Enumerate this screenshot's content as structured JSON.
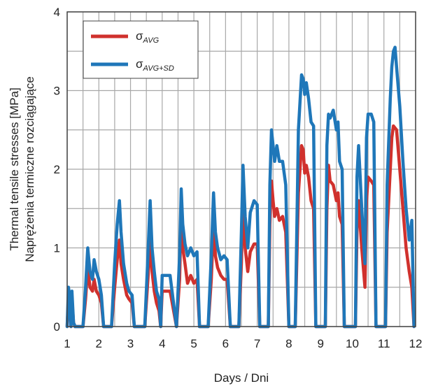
{
  "chart_data": {
    "type": "line",
    "title": "",
    "xlabel": "Days / Dni",
    "ylabel_lines": [
      "Thermal tensile stresses [MPa]",
      "Naprężenia termiczne rozciągające"
    ],
    "xlim": [
      1,
      12
    ],
    "ylim": [
      0,
      4
    ],
    "xticks": [
      1,
      2,
      3,
      4,
      5,
      6,
      7,
      8,
      9,
      10,
      11,
      12
    ],
    "yticks": [
      0,
      1,
      2,
      3,
      4
    ],
    "grid": true,
    "grid_step_x": 0.5,
    "grid_step_y": 0.5,
    "legend_position": "top-left",
    "series": [
      {
        "name": "σAVG",
        "name_base": "σ",
        "name_sub": "AVG",
        "color": "#d0312d",
        "points": [
          [
            1.0,
            0.0
          ],
          [
            1.04,
            0.35
          ],
          [
            1.08,
            0.3
          ],
          [
            1.12,
            0.0
          ],
          [
            1.15,
            0.35
          ],
          [
            1.2,
            0.05
          ],
          [
            1.25,
            0.0
          ],
          [
            1.5,
            0.0
          ],
          [
            1.58,
            0.35
          ],
          [
            1.65,
            0.75
          ],
          [
            1.72,
            0.5
          ],
          [
            1.8,
            0.45
          ],
          [
            1.85,
            0.6
          ],
          [
            1.92,
            0.45
          ],
          [
            2.0,
            0.4
          ],
          [
            2.08,
            0.3
          ],
          [
            2.15,
            0.0
          ],
          [
            2.4,
            0.0
          ],
          [
            2.5,
            0.5
          ],
          [
            2.58,
            0.85
          ],
          [
            2.65,
            1.1
          ],
          [
            2.7,
            0.8
          ],
          [
            2.78,
            0.6
          ],
          [
            2.88,
            0.4
          ],
          [
            2.95,
            0.35
          ],
          [
            3.05,
            0.3
          ],
          [
            3.12,
            0.0
          ],
          [
            3.45,
            0.0
          ],
          [
            3.55,
            0.6
          ],
          [
            3.62,
            1.1
          ],
          [
            3.68,
            0.7
          ],
          [
            3.75,
            0.45
          ],
          [
            3.82,
            0.3
          ],
          [
            3.9,
            0.2
          ],
          [
            3.95,
            0.0
          ],
          [
            4.0,
            0.45
          ],
          [
            4.25,
            0.45
          ],
          [
            4.45,
            0.0
          ],
          [
            4.55,
            0.6
          ],
          [
            4.6,
            1.45
          ],
          [
            4.65,
            1.0
          ],
          [
            4.72,
            0.8
          ],
          [
            4.8,
            0.55
          ],
          [
            4.9,
            0.65
          ],
          [
            5.0,
            0.55
          ],
          [
            5.1,
            0.6
          ],
          [
            5.18,
            0.0
          ],
          [
            5.45,
            0.0
          ],
          [
            5.55,
            0.6
          ],
          [
            5.62,
            1.3
          ],
          [
            5.68,
            0.9
          ],
          [
            5.75,
            0.75
          ],
          [
            5.85,
            0.65
          ],
          [
            5.95,
            0.6
          ],
          [
            6.05,
            0.6
          ],
          [
            6.15,
            0.0
          ],
          [
            6.42,
            0.0
          ],
          [
            6.5,
            0.8
          ],
          [
            6.55,
            1.55
          ],
          [
            6.62,
            1.0
          ],
          [
            6.7,
            0.7
          ],
          [
            6.78,
            0.95
          ],
          [
            6.9,
            1.05
          ],
          [
            7.0,
            1.05
          ],
          [
            7.08,
            0.0
          ],
          [
            7.35,
            0.0
          ],
          [
            7.4,
            1.3
          ],
          [
            7.45,
            1.85
          ],
          [
            7.5,
            1.6
          ],
          [
            7.55,
            1.4
          ],
          [
            7.62,
            1.5
          ],
          [
            7.7,
            1.35
          ],
          [
            7.8,
            1.4
          ],
          [
            7.9,
            1.2
          ],
          [
            8.0,
            0.0
          ],
          [
            8.2,
            0.0
          ],
          [
            8.3,
            1.7
          ],
          [
            8.4,
            2.3
          ],
          [
            8.45,
            2.25
          ],
          [
            8.5,
            1.95
          ],
          [
            8.55,
            2.05
          ],
          [
            8.62,
            1.9
          ],
          [
            8.7,
            1.6
          ],
          [
            8.78,
            1.5
          ],
          [
            8.85,
            0.0
          ],
          [
            9.15,
            0.0
          ],
          [
            9.2,
            1.5
          ],
          [
            9.25,
            2.05
          ],
          [
            9.3,
            1.85
          ],
          [
            9.4,
            1.8
          ],
          [
            9.5,
            1.6
          ],
          [
            9.55,
            1.7
          ],
          [
            9.6,
            1.4
          ],
          [
            9.68,
            1.3
          ],
          [
            9.75,
            0.0
          ],
          [
            10.1,
            0.0
          ],
          [
            10.15,
            1.2
          ],
          [
            10.2,
            1.6
          ],
          [
            10.25,
            1.3
          ],
          [
            10.3,
            1.0
          ],
          [
            10.4,
            0.5
          ],
          [
            10.45,
            1.6
          ],
          [
            10.5,
            1.9
          ],
          [
            10.6,
            1.85
          ],
          [
            10.68,
            1.8
          ],
          [
            10.75,
            0.0
          ],
          [
            11.05,
            0.0
          ],
          [
            11.1,
            1.2
          ],
          [
            11.2,
            2.0
          ],
          [
            11.25,
            2.4
          ],
          [
            11.3,
            2.55
          ],
          [
            11.4,
            2.5
          ],
          [
            11.5,
            2.0
          ],
          [
            11.6,
            1.5
          ],
          [
            11.7,
            1.0
          ],
          [
            11.8,
            0.7
          ],
          [
            11.88,
            0.5
          ],
          [
            11.95,
            0.0
          ]
        ]
      },
      {
        "name": "σAVG+SD",
        "name_base": "σ",
        "name_sub": "AVG+SD",
        "color": "#1f77b9",
        "points": [
          [
            1.0,
            0.0
          ],
          [
            1.04,
            0.5
          ],
          [
            1.08,
            0.4
          ],
          [
            1.12,
            0.0
          ],
          [
            1.15,
            0.45
          ],
          [
            1.2,
            0.05
          ],
          [
            1.25,
            0.0
          ],
          [
            1.5,
            0.0
          ],
          [
            1.58,
            0.5
          ],
          [
            1.65,
            1.0
          ],
          [
            1.72,
            0.7
          ],
          [
            1.8,
            0.6
          ],
          [
            1.85,
            0.85
          ],
          [
            1.92,
            0.7
          ],
          [
            2.0,
            0.6
          ],
          [
            2.08,
            0.4
          ],
          [
            2.15,
            0.0
          ],
          [
            2.4,
            0.0
          ],
          [
            2.5,
            0.8
          ],
          [
            2.58,
            1.3
          ],
          [
            2.65,
            1.6
          ],
          [
            2.7,
            1.2
          ],
          [
            2.78,
            0.8
          ],
          [
            2.88,
            0.55
          ],
          [
            2.95,
            0.45
          ],
          [
            3.05,
            0.4
          ],
          [
            3.12,
            0.0
          ],
          [
            3.45,
            0.0
          ],
          [
            3.55,
            0.9
          ],
          [
            3.62,
            1.6
          ],
          [
            3.68,
            1.0
          ],
          [
            3.75,
            0.7
          ],
          [
            3.82,
            0.45
          ],
          [
            3.9,
            0.35
          ],
          [
            3.95,
            0.0
          ],
          [
            4.0,
            0.65
          ],
          [
            4.25,
            0.65
          ],
          [
            4.45,
            0.0
          ],
          [
            4.55,
            0.9
          ],
          [
            4.6,
            1.75
          ],
          [
            4.65,
            1.3
          ],
          [
            4.72,
            1.05
          ],
          [
            4.8,
            0.9
          ],
          [
            4.9,
            1.0
          ],
          [
            5.0,
            0.9
          ],
          [
            5.1,
            0.95
          ],
          [
            5.18,
            0.0
          ],
          [
            5.45,
            0.0
          ],
          [
            5.55,
            0.9
          ],
          [
            5.62,
            1.7
          ],
          [
            5.68,
            1.2
          ],
          [
            5.75,
            1.0
          ],
          [
            5.85,
            0.85
          ],
          [
            5.95,
            0.9
          ],
          [
            6.05,
            0.85
          ],
          [
            6.15,
            0.0
          ],
          [
            6.42,
            0.0
          ],
          [
            6.5,
            1.2
          ],
          [
            6.55,
            2.05
          ],
          [
            6.62,
            1.4
          ],
          [
            6.7,
            1.0
          ],
          [
            6.78,
            1.45
          ],
          [
            6.9,
            1.6
          ],
          [
            7.0,
            1.55
          ],
          [
            7.08,
            0.0
          ],
          [
            7.35,
            0.0
          ],
          [
            7.4,
            1.8
          ],
          [
            7.45,
            2.5
          ],
          [
            7.5,
            2.3
          ],
          [
            7.55,
            2.1
          ],
          [
            7.62,
            2.3
          ],
          [
            7.7,
            2.1
          ],
          [
            7.8,
            2.1
          ],
          [
            7.9,
            1.8
          ],
          [
            8.0,
            0.0
          ],
          [
            8.2,
            0.0
          ],
          [
            8.3,
            2.5
          ],
          [
            8.4,
            3.2
          ],
          [
            8.45,
            3.15
          ],
          [
            8.5,
            2.95
          ],
          [
            8.55,
            3.1
          ],
          [
            8.62,
            2.9
          ],
          [
            8.7,
            2.6
          ],
          [
            8.78,
            2.55
          ],
          [
            8.85,
            0.0
          ],
          [
            9.15,
            0.0
          ],
          [
            9.2,
            2.3
          ],
          [
            9.25,
            2.7
          ],
          [
            9.3,
            2.65
          ],
          [
            9.4,
            2.75
          ],
          [
            9.5,
            2.5
          ],
          [
            9.55,
            2.6
          ],
          [
            9.6,
            2.1
          ],
          [
            9.68,
            2.0
          ],
          [
            9.75,
            0.0
          ],
          [
            10.1,
            0.0
          ],
          [
            10.15,
            1.9
          ],
          [
            10.2,
            2.3
          ],
          [
            10.25,
            1.9
          ],
          [
            10.3,
            1.5
          ],
          [
            10.4,
            0.8
          ],
          [
            10.45,
            2.4
          ],
          [
            10.5,
            2.7
          ],
          [
            10.6,
            2.7
          ],
          [
            10.68,
            2.6
          ],
          [
            10.75,
            0.0
          ],
          [
            11.05,
            0.0
          ],
          [
            11.1,
            1.8
          ],
          [
            11.2,
            2.9
          ],
          [
            11.25,
            3.3
          ],
          [
            11.3,
            3.5
          ],
          [
            11.35,
            3.55
          ],
          [
            11.4,
            3.3
          ],
          [
            11.5,
            2.8
          ],
          [
            11.6,
            2.1
          ],
          [
            11.7,
            1.5
          ],
          [
            11.8,
            1.1
          ],
          [
            11.88,
            1.35
          ],
          [
            11.95,
            0.0
          ]
        ]
      }
    ]
  }
}
